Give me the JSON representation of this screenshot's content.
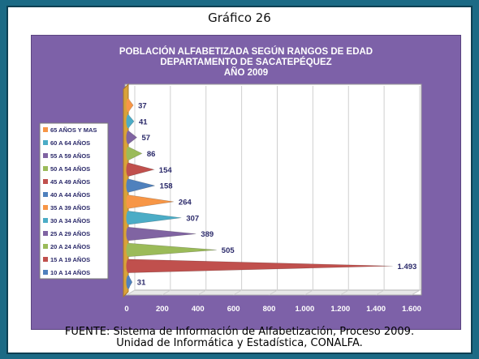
{
  "slide": {
    "title": "Gráfico 26"
  },
  "footer": {
    "line1": "FUENTE: Sistema de Información de Alfabetización, Proceso 2009.",
    "line2": "Unidad de Informática y Estadística, CONALFA."
  },
  "colors": {
    "panel": "#7d61a8",
    "plot_bg": "#ffffff",
    "label_text": "#2b2a6a"
  },
  "chart_data": {
    "type": "bar",
    "title": [
      "POBLACIÓN ALFABETIZADA SEGÚN RANGOS DE EDAD",
      "DEPARTAMENTO DE SACATEPÉQUEZ",
      "AÑO 2009"
    ],
    "orientation": "horizontal",
    "shape": "cone",
    "categories": [
      "65 AÑOS Y MAS",
      "60 A 64 AÑOS",
      "55 A 59 AÑOS",
      "50 A 54 AÑOS",
      "45 A 49 AÑOS",
      "40 A 44 AÑOS",
      "35 A 39 AÑOS",
      "30 A 34 AÑOS",
      "25 A 29 AÑOS",
      "20 A 24 AÑOS",
      "15 A 19 AÑOS",
      "10 A 14 AÑOS"
    ],
    "values": [
      37,
      41,
      57,
      86,
      154,
      158,
      264,
      307,
      389,
      505,
      1493,
      31
    ],
    "value_labels": [
      "37",
      "41",
      "57",
      "86",
      "154",
      "158",
      "264",
      "307",
      "389",
      "505",
      "1.493",
      "31"
    ],
    "colors": [
      "#f79646",
      "#4bacc6",
      "#8064a2",
      "#9bbb59",
      "#c0504d",
      "#4f81bd",
      "#f79646",
      "#4bacc6",
      "#8064a2",
      "#9bbb59",
      "#c0504d",
      "#4f81bd"
    ],
    "x_ticks": [
      "0",
      "200",
      "400",
      "600",
      "800",
      "1.000",
      "1.200",
      "1.400",
      "1.600"
    ],
    "xlim": [
      0,
      1600
    ],
    "legend": {
      "position": "left",
      "order": "top-to-bottom"
    },
    "grid": true
  }
}
